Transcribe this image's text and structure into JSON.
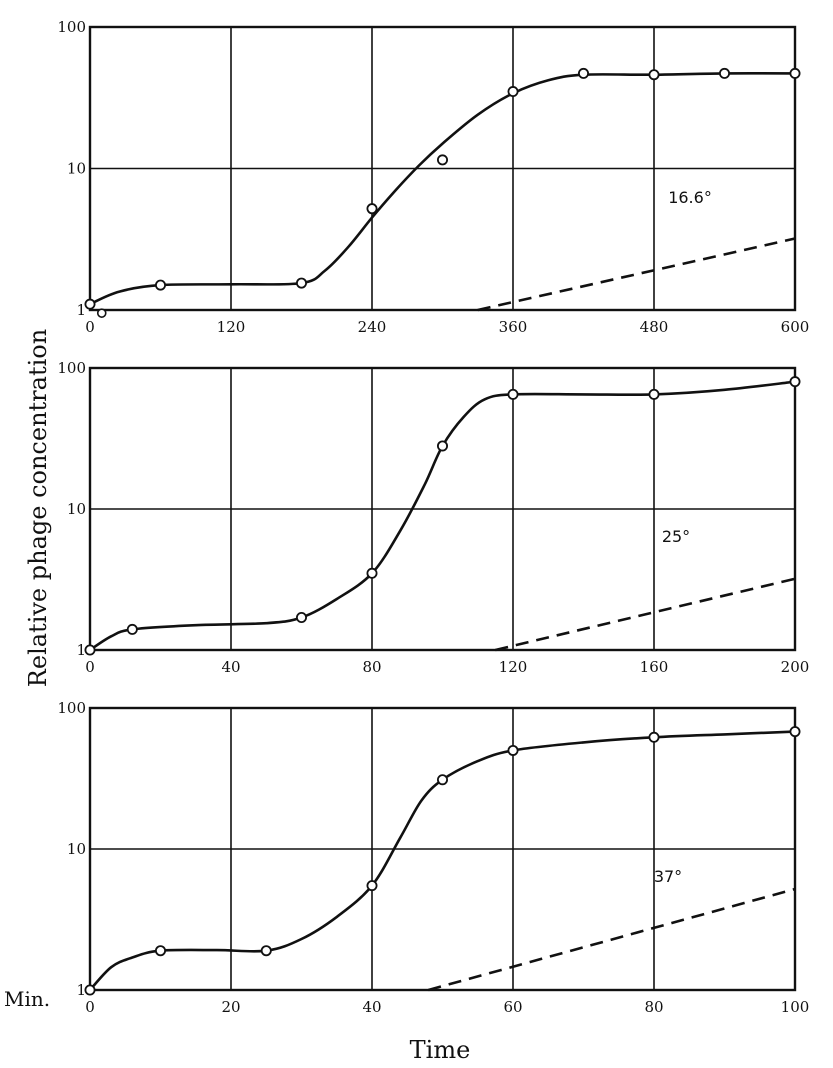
{
  "chart_data": {
    "ylabel": "Relative phage concentration",
    "xlabel": "Time",
    "x_unit_label": "Min.",
    "yscale": "log",
    "grid": true,
    "colors": {
      "line": "#111111",
      "marker_fill": "#ffffff"
    },
    "panels": [
      {
        "type": "line",
        "temperature": "16.6°",
        "xlim": [
          0,
          600
        ],
        "ylim": [
          1,
          100
        ],
        "x_ticks": [
          "0",
          "120",
          "240",
          "360",
          "480",
          "600"
        ],
        "x_tick_values": [
          0,
          120,
          240,
          360,
          480,
          600
        ],
        "y_ticks": [
          "1",
          "10",
          "100"
        ],
        "y_tick_values": [
          1,
          10,
          100
        ],
        "points": [
          {
            "x": 0,
            "y": 1.1
          },
          {
            "x": 60,
            "y": 1.5
          },
          {
            "x": 180,
            "y": 1.55
          },
          {
            "x": 240,
            "y": 5.2
          },
          {
            "x": 300,
            "y": 11.5
          },
          {
            "x": 360,
            "y": 35
          },
          {
            "x": 420,
            "y": 47
          },
          {
            "x": 480,
            "y": 46
          },
          {
            "x": 540,
            "y": 47
          },
          {
            "x": 600,
            "y": 47
          }
        ],
        "extra_points": [
          {
            "x": 10,
            "y": 0.95
          }
        ],
        "curve": [
          {
            "x": 0,
            "y": 1.1
          },
          {
            "x": 25,
            "y": 1.35
          },
          {
            "x": 60,
            "y": 1.5
          },
          {
            "x": 120,
            "y": 1.52
          },
          {
            "x": 180,
            "y": 1.55
          },
          {
            "x": 200,
            "y": 1.9
          },
          {
            "x": 220,
            "y": 2.8
          },
          {
            "x": 240,
            "y": 4.5
          },
          {
            "x": 260,
            "y": 7
          },
          {
            "x": 280,
            "y": 10.5
          },
          {
            "x": 300,
            "y": 15
          },
          {
            "x": 330,
            "y": 24
          },
          {
            "x": 360,
            "y": 34
          },
          {
            "x": 390,
            "y": 42
          },
          {
            "x": 420,
            "y": 46
          },
          {
            "x": 480,
            "y": 46
          },
          {
            "x": 540,
            "y": 47
          },
          {
            "x": 600,
            "y": 47
          }
        ],
        "dashed": [
          {
            "x": 330,
            "y": 1
          },
          {
            "x": 600,
            "y": 3.2
          }
        ]
      },
      {
        "type": "line",
        "temperature": "25°",
        "xlim": [
          0,
          200
        ],
        "ylim": [
          1,
          100
        ],
        "x_ticks": [
          "0",
          "40",
          "80",
          "120",
          "160",
          "200"
        ],
        "x_tick_values": [
          0,
          40,
          80,
          120,
          160,
          200
        ],
        "y_ticks": [
          "1",
          "10",
          "100"
        ],
        "y_tick_values": [
          1,
          10,
          100
        ],
        "points": [
          {
            "x": 0,
            "y": 1
          },
          {
            "x": 12,
            "y": 1.4
          },
          {
            "x": 60,
            "y": 1.7
          },
          {
            "x": 80,
            "y": 3.5
          },
          {
            "x": 100,
            "y": 28
          },
          {
            "x": 120,
            "y": 65
          },
          {
            "x": 160,
            "y": 65
          },
          {
            "x": 200,
            "y": 80
          }
        ],
        "extra_points": [],
        "curve": [
          {
            "x": 0,
            "y": 1
          },
          {
            "x": 6,
            "y": 1.25
          },
          {
            "x": 12,
            "y": 1.4
          },
          {
            "x": 30,
            "y": 1.5
          },
          {
            "x": 50,
            "y": 1.55
          },
          {
            "x": 60,
            "y": 1.7
          },
          {
            "x": 70,
            "y": 2.3
          },
          {
            "x": 80,
            "y": 3.5
          },
          {
            "x": 88,
            "y": 7
          },
          {
            "x": 95,
            "y": 15
          },
          {
            "x": 100,
            "y": 28
          },
          {
            "x": 106,
            "y": 45
          },
          {
            "x": 112,
            "y": 60
          },
          {
            "x": 120,
            "y": 65
          },
          {
            "x": 140,
            "y": 65
          },
          {
            "x": 160,
            "y": 65
          },
          {
            "x": 180,
            "y": 70
          },
          {
            "x": 200,
            "y": 80
          }
        ],
        "dashed": [
          {
            "x": 115,
            "y": 1
          },
          {
            "x": 200,
            "y": 3.2
          }
        ]
      },
      {
        "type": "line",
        "temperature": "37°",
        "xlim": [
          0,
          100
        ],
        "ylim": [
          1,
          100
        ],
        "x_ticks": [
          "0",
          "20",
          "40",
          "60",
          "80",
          "100"
        ],
        "x_tick_values": [
          0,
          20,
          40,
          60,
          80,
          100
        ],
        "y_ticks": [
          "1",
          "10",
          "100"
        ],
        "y_tick_values": [
          1,
          10,
          100
        ],
        "points": [
          {
            "x": 0,
            "y": 1
          },
          {
            "x": 10,
            "y": 1.9
          },
          {
            "x": 25,
            "y": 1.9
          },
          {
            "x": 40,
            "y": 5.5
          },
          {
            "x": 50,
            "y": 31
          },
          {
            "x": 60,
            "y": 50
          },
          {
            "x": 80,
            "y": 62
          },
          {
            "x": 100,
            "y": 68
          }
        ],
        "extra_points": [],
        "curve": [
          {
            "x": 0,
            "y": 1
          },
          {
            "x": 3,
            "y": 1.45
          },
          {
            "x": 6,
            "y": 1.7
          },
          {
            "x": 10,
            "y": 1.9
          },
          {
            "x": 18,
            "y": 1.92
          },
          {
            "x": 25,
            "y": 1.9
          },
          {
            "x": 30,
            "y": 2.3
          },
          {
            "x": 35,
            "y": 3.3
          },
          {
            "x": 40,
            "y": 5.5
          },
          {
            "x": 44,
            "y": 12
          },
          {
            "x": 47,
            "y": 22
          },
          {
            "x": 50,
            "y": 31
          },
          {
            "x": 55,
            "y": 42
          },
          {
            "x": 60,
            "y": 50
          },
          {
            "x": 70,
            "y": 57
          },
          {
            "x": 80,
            "y": 62
          },
          {
            "x": 90,
            "y": 65
          },
          {
            "x": 100,
            "y": 68
          }
        ],
        "dashed": [
          {
            "x": 48,
            "y": 1
          },
          {
            "x": 100,
            "y": 5.2
          }
        ]
      }
    ]
  }
}
